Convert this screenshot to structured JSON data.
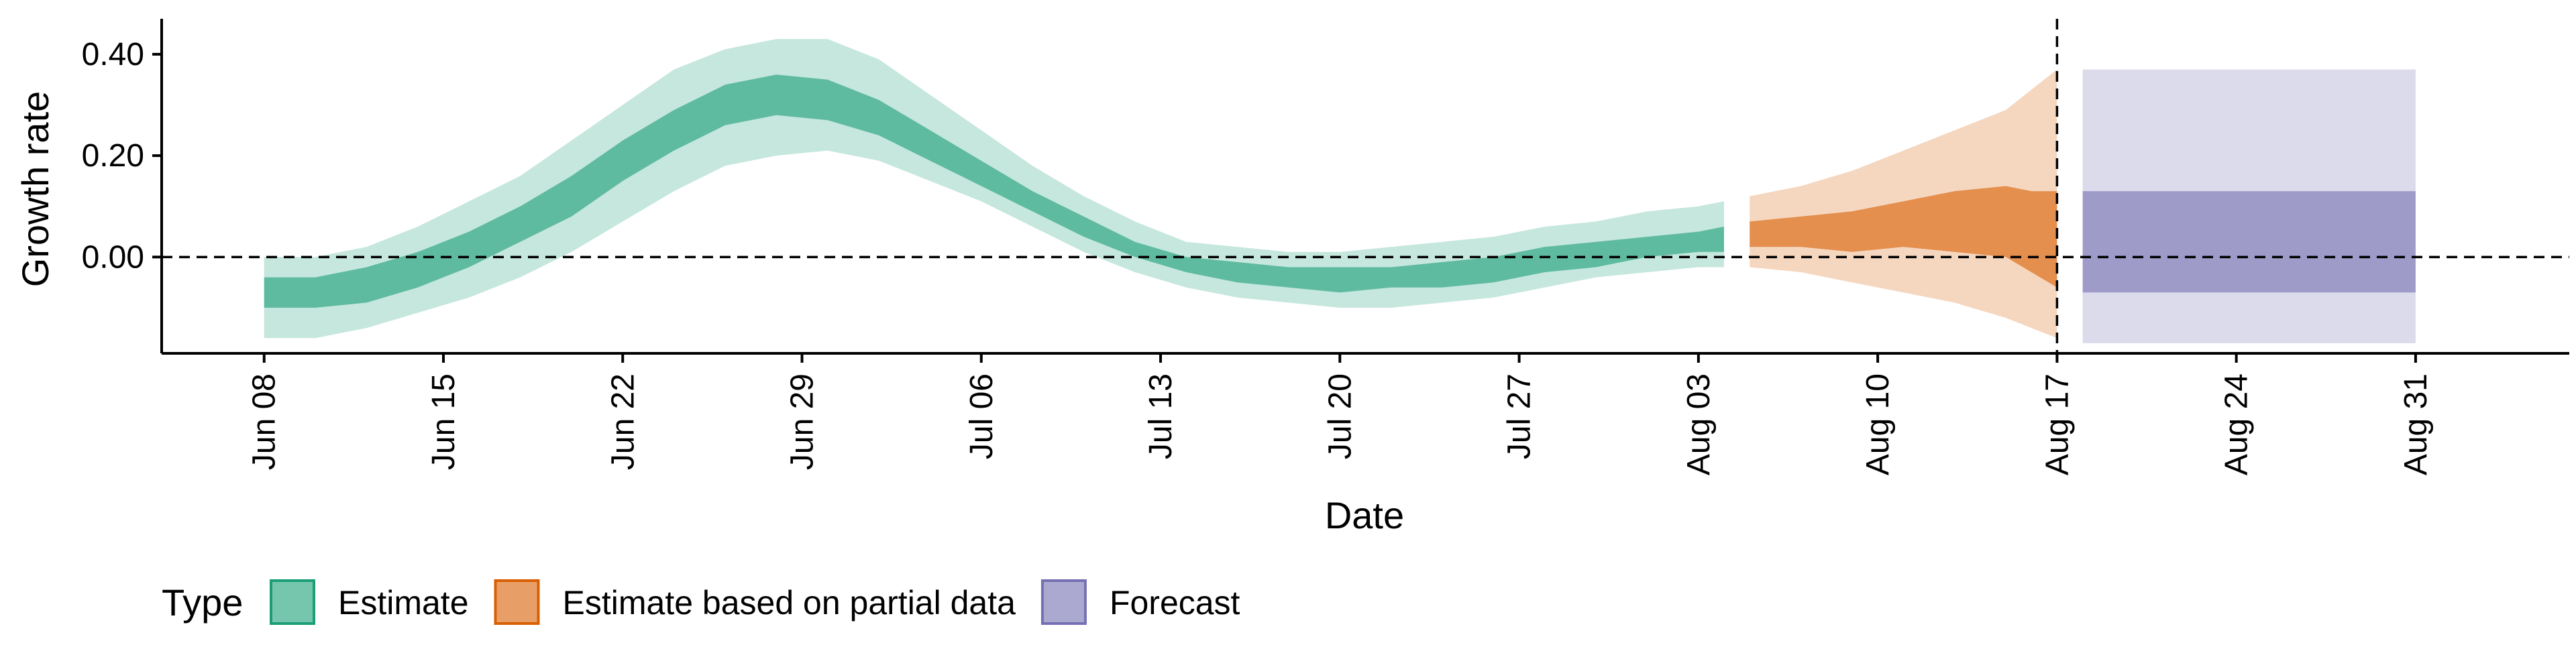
{
  "chart_data": {
    "type": "area",
    "xlabel": "Date",
    "ylabel": "Growth rate",
    "x_ticks": [
      "Jun 08",
      "Jun 15",
      "Jun 22",
      "Jun 29",
      "Jul 06",
      "Jul 13",
      "Jul 20",
      "Jul 27",
      "Aug 03",
      "Aug 10",
      "Aug 17",
      "Aug 24",
      "Aug 31"
    ],
    "y_ticks": [
      "0.00",
      "0.20",
      "0.40"
    ],
    "y_tick_values": [
      0.0,
      0.2,
      0.4
    ],
    "ylim": [
      -0.19,
      0.47
    ],
    "xlim": [
      "2020-06-04",
      "2020-09-06"
    ],
    "reference_lines": [
      {
        "axis": "y",
        "value": 0.0,
        "style": "dashed"
      },
      {
        "axis": "x",
        "value": "2020-08-17",
        "style": "dashed"
      }
    ],
    "legend": {
      "title": "Type",
      "position": "bottom",
      "items": [
        {
          "label": "Estimate",
          "color": "#1b9e77"
        },
        {
          "label": "Estimate based on partial data",
          "color": "#d95f02"
        },
        {
          "label": "Forecast",
          "color": "#7570b3"
        }
      ]
    },
    "series": [
      {
        "name": "Estimate",
        "color": "#1b9e77",
        "x": [
          "2020-06-08",
          "2020-06-10",
          "2020-06-12",
          "2020-06-14",
          "2020-06-16",
          "2020-06-18",
          "2020-06-20",
          "2020-06-22",
          "2020-06-24",
          "2020-06-26",
          "2020-06-28",
          "2020-06-30",
          "2020-07-02",
          "2020-07-04",
          "2020-07-06",
          "2020-07-08",
          "2020-07-10",
          "2020-07-12",
          "2020-07-14",
          "2020-07-16",
          "2020-07-18",
          "2020-07-20",
          "2020-07-22",
          "2020-07-24",
          "2020-07-26",
          "2020-07-28",
          "2020-07-30",
          "2020-08-01",
          "2020-08-03",
          "2020-08-04"
        ],
        "lower_90": [
          -0.16,
          -0.16,
          -0.14,
          -0.11,
          -0.08,
          -0.04,
          0.01,
          0.07,
          0.13,
          0.18,
          0.2,
          0.21,
          0.19,
          0.15,
          0.11,
          0.06,
          0.01,
          -0.03,
          -0.06,
          -0.08,
          -0.09,
          -0.1,
          -0.1,
          -0.09,
          -0.08,
          -0.06,
          -0.04,
          -0.03,
          -0.02,
          -0.02
        ],
        "lower_50": [
          -0.1,
          -0.1,
          -0.09,
          -0.06,
          -0.02,
          0.03,
          0.08,
          0.15,
          0.21,
          0.26,
          0.28,
          0.27,
          0.24,
          0.19,
          0.14,
          0.09,
          0.04,
          0.0,
          -0.03,
          -0.05,
          -0.06,
          -0.07,
          -0.06,
          -0.06,
          -0.05,
          -0.03,
          -0.02,
          0.0,
          0.01,
          0.01
        ],
        "upper_50": [
          -0.04,
          -0.04,
          -0.02,
          0.01,
          0.05,
          0.1,
          0.16,
          0.23,
          0.29,
          0.34,
          0.36,
          0.35,
          0.31,
          0.25,
          0.19,
          0.13,
          0.08,
          0.03,
          0.0,
          -0.01,
          -0.02,
          -0.02,
          -0.02,
          -0.01,
          0.0,
          0.02,
          0.03,
          0.04,
          0.05,
          0.06
        ],
        "upper_90": [
          0.0,
          0.0,
          0.02,
          0.06,
          0.11,
          0.16,
          0.23,
          0.3,
          0.37,
          0.41,
          0.43,
          0.43,
          0.39,
          0.32,
          0.25,
          0.18,
          0.12,
          0.07,
          0.03,
          0.02,
          0.01,
          0.01,
          0.02,
          0.03,
          0.04,
          0.06,
          0.07,
          0.09,
          0.1,
          0.11
        ]
      },
      {
        "name": "Estimate based on partial data",
        "color": "#d95f02",
        "x": [
          "2020-08-05",
          "2020-08-07",
          "2020-08-09",
          "2020-08-11",
          "2020-08-13",
          "2020-08-15",
          "2020-08-16",
          "2020-08-17"
        ],
        "lower_90": [
          -0.02,
          -0.03,
          -0.05,
          -0.07,
          -0.09,
          -0.12,
          -0.14,
          -0.16
        ],
        "lower_50": [
          0.02,
          0.02,
          0.01,
          0.02,
          0.01,
          0.0,
          -0.03,
          -0.06
        ],
        "upper_50": [
          0.07,
          0.08,
          0.09,
          0.11,
          0.13,
          0.14,
          0.13,
          0.13
        ],
        "upper_90": [
          0.12,
          0.14,
          0.17,
          0.21,
          0.25,
          0.29,
          0.33,
          0.37
        ]
      },
      {
        "name": "Forecast",
        "color": "#7570b3",
        "x": [
          "2020-08-18",
          "2020-08-31"
        ],
        "lower_90": [
          -0.17,
          -0.17
        ],
        "lower_50": [
          -0.07,
          -0.07
        ],
        "upper_50": [
          0.13,
          0.13
        ],
        "upper_90": [
          0.37,
          0.37
        ]
      }
    ]
  }
}
